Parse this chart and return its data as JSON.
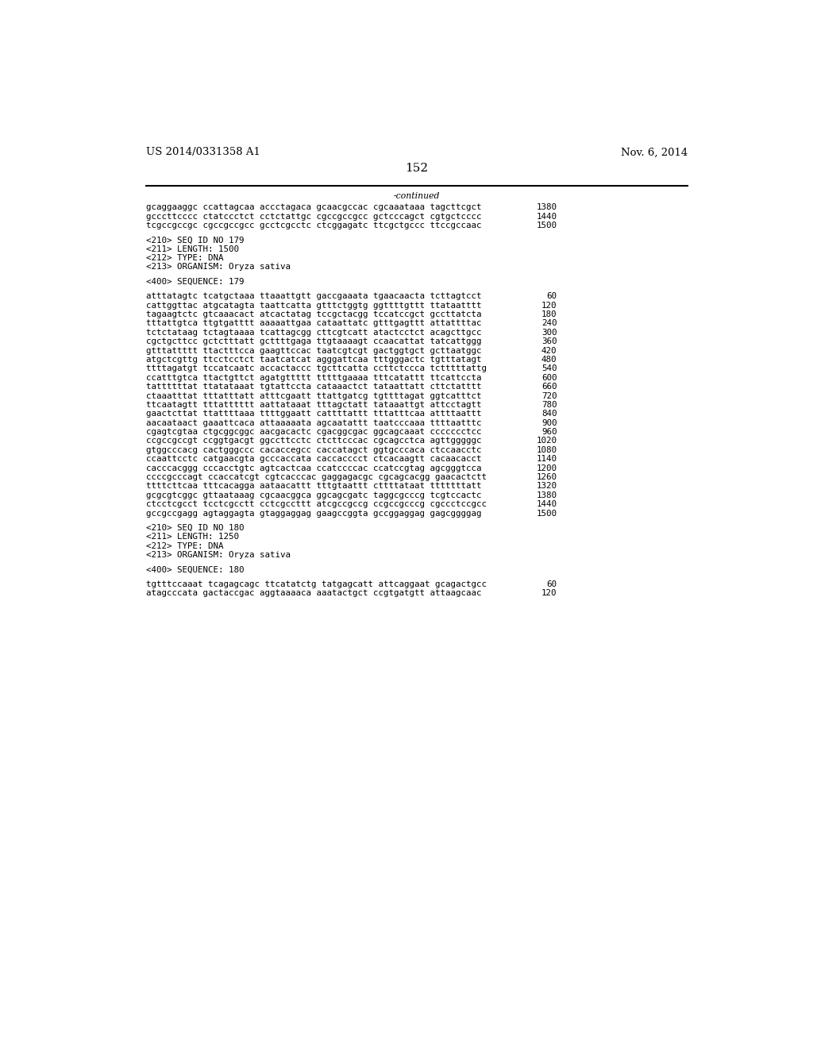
{
  "header_left": "US 2014/0331358 A1",
  "header_right": "Nov. 6, 2014",
  "page_number": "152",
  "continued_label": "-continued",
  "background_color": "#ffffff",
  "text_color": "#000000",
  "font_size_header": 9.5,
  "font_size_body": 7.8,
  "font_size_page": 11,
  "lines": [
    {
      "text": "gcaggaaggc ccattagcaa accctagaca gcaacgccac cgcaaataaa tagcttcgct",
      "num": "1380",
      "type": "seq"
    },
    {
      "text": "gcccttcccc ctatccctct cctctattgc cgccgccgcc gctcccagct cgtgctcccc",
      "num": "1440",
      "type": "seq"
    },
    {
      "text": "tcgccgccgc cgccgccgcc gcctcgcctc ctcggagatc ttcgctgccc ttccgccaac",
      "num": "1500",
      "type": "seq"
    },
    {
      "text": "",
      "num": "",
      "type": "blank"
    },
    {
      "text": "<210> SEQ ID NO 179",
      "num": "",
      "type": "meta"
    },
    {
      "text": "<211> LENGTH: 1500",
      "num": "",
      "type": "meta"
    },
    {
      "text": "<212> TYPE: DNA",
      "num": "",
      "type": "meta"
    },
    {
      "text": "<213> ORGANISM: Oryza sativa",
      "num": "",
      "type": "meta"
    },
    {
      "text": "",
      "num": "",
      "type": "blank"
    },
    {
      "text": "<400> SEQUENCE: 179",
      "num": "",
      "type": "meta"
    },
    {
      "text": "",
      "num": "",
      "type": "blank"
    },
    {
      "text": "atttatagtc tcatgctaaa ttaaattgtt gaccgaaata tgaacaacta tcttagtcct",
      "num": "60",
      "type": "seq"
    },
    {
      "text": "cattggttac atgcatagta taattcatta gtttctggtg ggttttgttt ttataatttt",
      "num": "120",
      "type": "seq"
    },
    {
      "text": "tagaagtctc gtcaaacact atcactatag tccgctacgg tccatccgct gccttatcta",
      "num": "180",
      "type": "seq"
    },
    {
      "text": "tttattgtca ttgtgatttt aaaaattgaa cataattatc gtttgagttt attattttac",
      "num": "240",
      "type": "seq"
    },
    {
      "text": "tctctataag tctagtaaaa tcattagcgg cttcgtcatt atactcctct acagcttgcc",
      "num": "300",
      "type": "seq"
    },
    {
      "text": "cgctgcttcc gctctttatt gcttttgaga ttgtaaaagt ccaacattat tatcattggg",
      "num": "360",
      "type": "seq"
    },
    {
      "text": "gtttattttt ttactttcca gaagttccac taatcgtcgt gactggtgct gcttaatggc",
      "num": "420",
      "type": "seq"
    },
    {
      "text": "atgctcgttg ttcctcctct taatcatcat agggattcaa tttgggactc tgtttatagt",
      "num": "480",
      "type": "seq"
    },
    {
      "text": "ttttagatgt tccatcaatc accactaccc tgcttcatta ccttctccca tctttttattg",
      "num": "540",
      "type": "seq"
    },
    {
      "text": "ccatttgtca ttactgttct agatgttttt tttttgaaaa tttcatattt ttcattccta",
      "num": "600",
      "type": "seq"
    },
    {
      "text": "tattttttat ttatataaat tgtattccta cataaactct tataattatt cttctatttt",
      "num": "660",
      "type": "seq"
    },
    {
      "text": "ctaaatttat tttatttatt atttcgaatt ttattgatcg tgttttagat ggtcatttct",
      "num": "720",
      "type": "seq"
    },
    {
      "text": "ttcaatagtt tttatttttt aattataaat tttagctatt tataaattgt attcctagtt",
      "num": "780",
      "type": "seq"
    },
    {
      "text": "gaactcttat ttattttaaa ttttggaatt cattttattt tttatttcaa attttaattt",
      "num": "840",
      "type": "seq"
    },
    {
      "text": "aacaataact gaaattcaca attaaaaata agcaatattt taatcccaaa ttttaatttc",
      "num": "900",
      "type": "seq"
    },
    {
      "text": "cgagtcgtaa ctgcggcggc aacgacactc cgacggcgac ggcagcaaat ccccccctcc",
      "num": "960",
      "type": "seq"
    },
    {
      "text": "ccgccgccgt ccggtgacgt ggccttcctc ctcttcccac cgcagcctca agttgggggc",
      "num": "1020",
      "type": "seq"
    },
    {
      "text": "gtggcccacg cactgggccc cacaccegcc caccatagct ggtgcccaca ctccaacctc",
      "num": "1080",
      "type": "seq"
    },
    {
      "text": "ccaattcctc catgaacgta gcccaccata caccacccct ctcacaagtt cacaacacct",
      "num": "1140",
      "type": "seq"
    },
    {
      "text": "cacccacggg cccacctgtc agtcactcaa ccatccccac ccatccgtag agcgggtcca",
      "num": "1200",
      "type": "seq"
    },
    {
      "text": "ccccgcccagt ccaccatcgt cgtcacccac gaggagacgc cgcagcacgg gaacactctt",
      "num": "1260",
      "type": "seq"
    },
    {
      "text": "ttttcttcaa tttcacagga aataacattt tttgtaattt cttttataat tttttttatt",
      "num": "1320",
      "type": "seq"
    },
    {
      "text": "gcgcgtcggc gttaataaag cgcaacggca ggcagcgatc taggcgcccg tcgtccactc",
      "num": "1380",
      "type": "seq"
    },
    {
      "text": "ctcctcgcct tcctcgcctt cctcgccttt atcgccgccg ccgccgcccg cgccctccgcc",
      "num": "1440",
      "type": "seq"
    },
    {
      "text": "gccgccgagg agtaggagta gtaggaggag gaagccggta gccggaggag gagcggggag",
      "num": "1500",
      "type": "seq"
    },
    {
      "text": "",
      "num": "",
      "type": "blank"
    },
    {
      "text": "<210> SEQ ID NO 180",
      "num": "",
      "type": "meta"
    },
    {
      "text": "<211> LENGTH: 1250",
      "num": "",
      "type": "meta"
    },
    {
      "text": "<212> TYPE: DNA",
      "num": "",
      "type": "meta"
    },
    {
      "text": "<213> ORGANISM: Oryza sativa",
      "num": "",
      "type": "meta"
    },
    {
      "text": "",
      "num": "",
      "type": "blank"
    },
    {
      "text": "<400> SEQUENCE: 180",
      "num": "",
      "type": "meta"
    },
    {
      "text": "",
      "num": "",
      "type": "blank"
    },
    {
      "text": "tgtttccaaat tcagagcagc ttcatatctg tatgagcatt attcaggaat gcagactgcc",
      "num": "60",
      "type": "seq"
    },
    {
      "text": "atagcccata gactaccgac aggtaaaaca aaatactgct ccgtgatgtt attaagcaac",
      "num": "120",
      "type": "seq"
    }
  ]
}
